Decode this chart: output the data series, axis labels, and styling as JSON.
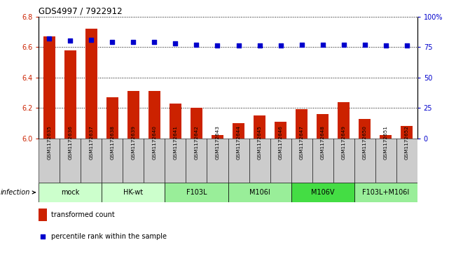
{
  "title": "GDS4997 / 7922912",
  "samples": [
    "GSM1172635",
    "GSM1172636",
    "GSM1172637",
    "GSM1172638",
    "GSM1172639",
    "GSM1172640",
    "GSM1172641",
    "GSM1172642",
    "GSM1172643",
    "GSM1172644",
    "GSM1172645",
    "GSM1172646",
    "GSM1172647",
    "GSM1172648",
    "GSM1172649",
    "GSM1172650",
    "GSM1172651",
    "GSM1172652"
  ],
  "transformed_counts": [
    6.67,
    6.58,
    6.72,
    6.27,
    6.31,
    6.31,
    6.23,
    6.2,
    6.02,
    6.1,
    6.15,
    6.11,
    6.19,
    6.16,
    6.24,
    6.13,
    6.02,
    6.08
  ],
  "percentile_ranks": [
    82,
    80,
    81,
    79,
    79,
    79,
    78,
    77,
    76,
    76,
    76,
    76,
    77,
    77,
    77,
    77,
    76,
    76
  ],
  "groups": [
    {
      "label": "mock",
      "start": 0,
      "end": 3,
      "color": "#ccffcc"
    },
    {
      "label": "HK-wt",
      "start": 3,
      "end": 6,
      "color": "#ccffcc"
    },
    {
      "label": "F103L",
      "start": 6,
      "end": 9,
      "color": "#99ee99"
    },
    {
      "label": "M106I",
      "start": 9,
      "end": 12,
      "color": "#99ee99"
    },
    {
      "label": "M106V",
      "start": 12,
      "end": 15,
      "color": "#44dd44"
    },
    {
      "label": "F103L+M106I",
      "start": 15,
      "end": 18,
      "color": "#99ee99"
    }
  ],
  "ylim_left": [
    6.0,
    6.8
  ],
  "ylim_right": [
    0,
    100
  ],
  "yticks_left": [
    6.0,
    6.2,
    6.4,
    6.6,
    6.8
  ],
  "yticks_right": [
    0,
    25,
    50,
    75,
    100
  ],
  "bar_color": "#cc2200",
  "dot_color": "#0000cc",
  "left_tick_color": "#cc2200",
  "right_tick_color": "#0000cc",
  "sample_box_color": "#cccccc",
  "legend_bar_label": "transformed count",
  "legend_dot_label": "percentile rank within the sample",
  "infection_label": "infection"
}
